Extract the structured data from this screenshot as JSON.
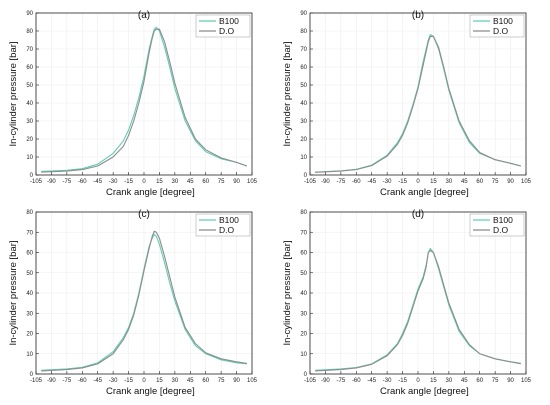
{
  "colors": {
    "b100": "#5fcdb4",
    "do": "#8c8c8c",
    "axis": "#222222",
    "grid": "#ececec"
  },
  "chart_data": [
    {
      "type": "line",
      "title": "(a)",
      "xlabel": "Crank angle [degree]",
      "ylabel": "In-cylinder pressure  [bar]",
      "xlim": [
        -105,
        105
      ],
      "ylim": [
        0,
        90
      ],
      "xticks": [
        -105,
        -90,
        -75,
        -60,
        -45,
        -30,
        -15,
        0,
        15,
        30,
        45,
        60,
        75,
        90,
        105
      ],
      "yticks": [
        0,
        10,
        20,
        30,
        40,
        50,
        60,
        70,
        80,
        90
      ],
      "grid": true,
      "legend_position": "top-right",
      "series": [
        {
          "name": "B100",
          "x": [
            -100,
            -75,
            -60,
            -45,
            -30,
            -20,
            -15,
            -10,
            -5,
            0,
            5,
            8,
            10,
            12,
            15,
            20,
            25,
            30,
            40,
            50,
            60,
            75,
            90,
            100
          ],
          "y": [
            2,
            2.6,
            3.5,
            6,
            12,
            19,
            25,
            33,
            43,
            55,
            70,
            77,
            81,
            82,
            80,
            71,
            60,
            48,
            30,
            19,
            13,
            9,
            7,
            5
          ]
        },
        {
          "name": "D.O",
          "x": [
            -100,
            -75,
            -60,
            -45,
            -30,
            -20,
            -15,
            -10,
            -5,
            0,
            5,
            8,
            10,
            12,
            15,
            20,
            25,
            30,
            40,
            50,
            60,
            75,
            90,
            100
          ],
          "y": [
            1.6,
            2.2,
            3,
            5,
            10,
            16,
            22,
            30,
            40,
            52,
            68,
            76,
            80,
            81,
            81,
            74,
            63,
            51,
            32,
            20,
            14,
            9.5,
            7,
            5
          ]
        }
      ]
    },
    {
      "type": "line",
      "title": "(b)",
      "xlabel": "Crank angle [degree]",
      "ylabel": "In-cylinder pressure  [bar]",
      "xlim": [
        -105,
        105
      ],
      "ylim": [
        0,
        90
      ],
      "xticks": [
        -105,
        -90,
        -75,
        -60,
        -45,
        -30,
        -15,
        0,
        15,
        30,
        45,
        60,
        75,
        90,
        105
      ],
      "yticks": [
        0,
        10,
        20,
        30,
        40,
        50,
        60,
        70,
        80,
        90
      ],
      "grid": true,
      "legend_position": "top-right",
      "series": [
        {
          "name": "B100",
          "x": [
            -100,
            -75,
            -60,
            -45,
            -30,
            -20,
            -15,
            -10,
            -5,
            0,
            5,
            10,
            12,
            15,
            20,
            25,
            30,
            40,
            50,
            60,
            75,
            90,
            100
          ],
          "y": [
            1.6,
            2.3,
            3.2,
            5.5,
            11,
            18,
            23,
            30,
            39,
            49,
            63,
            75,
            78,
            77,
            70,
            59,
            47,
            29,
            18,
            12,
            8.5,
            6.5,
            5
          ]
        },
        {
          "name": "D.O",
          "x": [
            -100,
            -75,
            -60,
            -45,
            -30,
            -20,
            -15,
            -10,
            -5,
            0,
            5,
            10,
            12,
            15,
            20,
            25,
            30,
            40,
            50,
            60,
            75,
            90,
            100
          ],
          "y": [
            1.5,
            2.2,
            3,
            5.2,
            10.5,
            17,
            22,
            29,
            38,
            48,
            61,
            74,
            77,
            77,
            71,
            60,
            48,
            30,
            19,
            12.5,
            8.5,
            6.5,
            5
          ]
        }
      ]
    },
    {
      "type": "line",
      "title": "(c)",
      "xlabel": "Crank angle [degree]",
      "ylabel": "In-cylinder pressure  [bar]",
      "xlim": [
        -105,
        105
      ],
      "ylim": [
        0,
        80
      ],
      "xticks": [
        -105,
        -90,
        -75,
        -60,
        -45,
        -30,
        -15,
        0,
        15,
        30,
        45,
        60,
        75,
        90,
        105
      ],
      "yticks": [
        0,
        10,
        20,
        30,
        40,
        50,
        60,
        70,
        80
      ],
      "grid": true,
      "legend_position": "top-right",
      "series": [
        {
          "name": "B100",
          "x": [
            -100,
            -75,
            -60,
            -45,
            -30,
            -20,
            -15,
            -10,
            -5,
            0,
            5,
            8,
            10,
            12,
            15,
            20,
            25,
            30,
            40,
            50,
            60,
            75,
            90,
            100
          ],
          "y": [
            1.8,
            2.5,
            3.3,
            5.5,
            11,
            18,
            23,
            30,
            40,
            52,
            63,
            67,
            69,
            68,
            64,
            55,
            45,
            36,
            22,
            14,
            10,
            7,
            5.5,
            5
          ]
        },
        {
          "name": "D.O",
          "x": [
            -100,
            -75,
            -60,
            -45,
            -30,
            -20,
            -15,
            -10,
            -5,
            0,
            5,
            8,
            10,
            12,
            15,
            20,
            25,
            30,
            40,
            50,
            60,
            75,
            90,
            100
          ],
          "y": [
            1.5,
            2.2,
            3,
            5,
            10,
            17,
            22,
            29,
            39,
            51,
            62,
            68,
            70.5,
            70,
            67,
            58,
            48,
            38,
            23,
            15,
            10.5,
            7.5,
            6,
            5.2
          ]
        }
      ]
    },
    {
      "type": "line",
      "title": "(d)",
      "xlabel": "Crank angle [degree]",
      "ylabel": "In-cylinder pressure  [bar]",
      "xlim": [
        -105,
        105
      ],
      "ylim": [
        0,
        80
      ],
      "xticks": [
        -105,
        -90,
        -75,
        -60,
        -45,
        -30,
        -15,
        0,
        15,
        30,
        45,
        60,
        75,
        90,
        105
      ],
      "yticks": [
        0,
        10,
        20,
        30,
        40,
        50,
        60,
        70,
        80
      ],
      "grid": true,
      "legend_position": "top-right",
      "series": [
        {
          "name": "B100",
          "x": [
            -100,
            -75,
            -60,
            -45,
            -30,
            -20,
            -15,
            -10,
            -5,
            0,
            5,
            8,
            10,
            12,
            15,
            20,
            25,
            30,
            40,
            50,
            60,
            75,
            90,
            100
          ],
          "y": [
            1.8,
            2.5,
            3.2,
            5,
            9.5,
            15,
            20,
            26,
            34,
            42,
            48,
            54,
            60,
            62,
            60,
            52,
            43,
            34,
            21,
            14,
            10,
            7.5,
            6,
            5
          ]
        },
        {
          "name": "D.O",
          "x": [
            -100,
            -75,
            -60,
            -45,
            -30,
            -20,
            -15,
            -10,
            -5,
            0,
            5,
            8,
            10,
            12,
            15,
            20,
            25,
            30,
            40,
            50,
            60,
            75,
            90,
            100
          ],
          "y": [
            1.5,
            2.2,
            3,
            4.8,
            9,
            14.5,
            19,
            25,
            33,
            41,
            47,
            53,
            60,
            61,
            60,
            53,
            44,
            35,
            22,
            14.5,
            10,
            7.5,
            6,
            5.2
          ]
        }
      ]
    }
  ]
}
